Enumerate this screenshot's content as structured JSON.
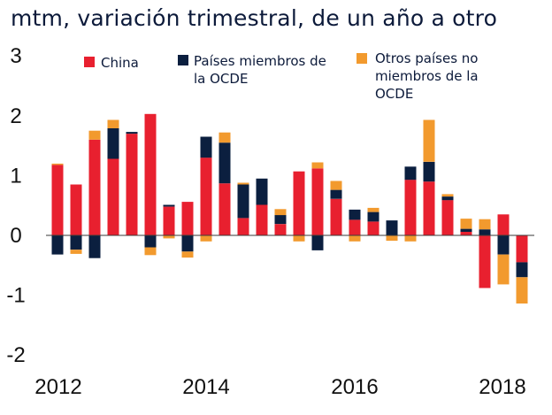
{
  "title": "mtm, variación trimestral, de un año a otro",
  "chart_data": {
    "type": "bar",
    "stacked": true,
    "title": "mtm, variación trimestral, de un año a otro",
    "xlabel": "",
    "ylabel": "",
    "ylim": [
      -2,
      3
    ],
    "yticks": [
      "3",
      "2",
      "1",
      "0",
      "-1",
      "-2"
    ],
    "xticks": [
      "2012",
      "2014",
      "2016",
      "2018"
    ],
    "grid": false,
    "legend_position": "top",
    "colors": {
      "china": "#e8202f",
      "ocde": "#0b1f3f",
      "no_ocde": "#f29a2e"
    },
    "series": [
      {
        "name": "China",
        "key": "china",
        "values": [
          1.18,
          0.85,
          1.6,
          1.28,
          1.7,
          2.03,
          0.48,
          0.56,
          1.3,
          0.87,
          0.29,
          0.51,
          0.19,
          1.07,
          1.12,
          0.61,
          0.26,
          0.23,
          0.0,
          0.93,
          0.9,
          0.59,
          0.06,
          -0.88,
          0.35,
          -0.45
        ]
      },
      {
        "name": "Países miembros de la OCDE",
        "key": "ocde",
        "values": [
          -0.32,
          -0.24,
          -0.38,
          0.51,
          0.03,
          -0.2,
          0.03,
          -0.27,
          0.35,
          0.68,
          0.56,
          0.44,
          0.15,
          0.0,
          -0.25,
          0.15,
          0.17,
          0.16,
          0.25,
          0.22,
          0.33,
          0.06,
          0.05,
          0.1,
          -0.32,
          -0.25
        ]
      },
      {
        "name": "Otros países no miembros de la OCDE",
        "key": "no_ocde",
        "values": [
          0.02,
          -0.07,
          0.15,
          0.14,
          0.0,
          -0.13,
          -0.05,
          -0.1,
          -0.1,
          0.17,
          0.03,
          0.0,
          0.1,
          -0.1,
          0.1,
          0.15,
          -0.1,
          0.07,
          -0.09,
          -0.1,
          0.7,
          0.04,
          0.17,
          0.17,
          -0.5,
          -0.44
        ]
      }
    ],
    "legend": [
      {
        "key": "china",
        "lines": [
          "China"
        ]
      },
      {
        "key": "ocde",
        "lines": [
          "Países miembros de",
          "la OCDE"
        ]
      },
      {
        "key": "no_ocde",
        "lines": [
          "Otros países no",
          "miembros de la",
          "OCDE"
        ]
      }
    ]
  }
}
